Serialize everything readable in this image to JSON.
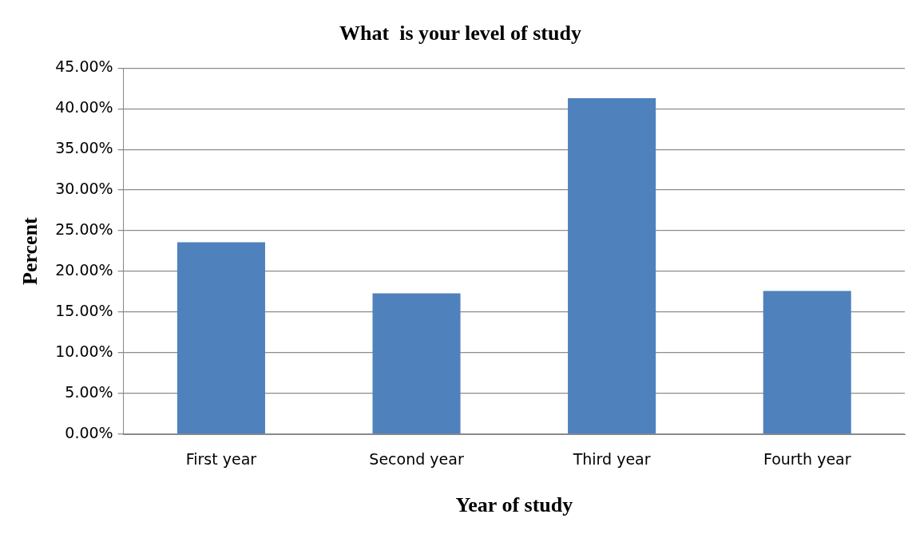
{
  "chart_data": {
    "type": "bar",
    "title": "What  is your level of study",
    "xlabel": "Year of study",
    "ylabel": "Percent",
    "categories": [
      "First year",
      "Second year",
      "Third year",
      "Fourth year"
    ],
    "values": [
      23.6,
      17.3,
      41.3,
      17.6
    ],
    "color": "#4f81bd",
    "ylim": [
      0,
      45
    ],
    "yticks": [
      {
        "value": 0,
        "label": "0.00%"
      },
      {
        "value": 5,
        "label": "5.00%"
      },
      {
        "value": 10,
        "label": "10.00%"
      },
      {
        "value": 15,
        "label": "15.00%"
      },
      {
        "value": 20,
        "label": "20.00%"
      },
      {
        "value": 25,
        "label": "25.00%"
      },
      {
        "value": 30,
        "label": "30.00%"
      },
      {
        "value": 35,
        "label": "35.00%"
      },
      {
        "value": 40,
        "label": "40.00%"
      },
      {
        "value": 45,
        "label": "45.00%"
      }
    ],
    "grid": "y",
    "legend": false
  }
}
